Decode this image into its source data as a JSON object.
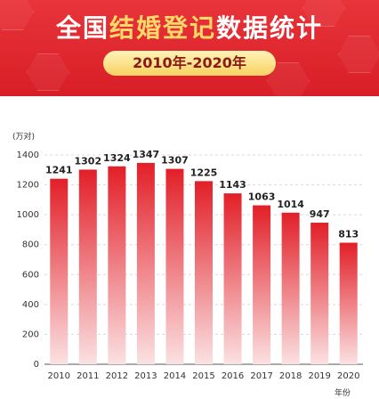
{
  "header": {
    "title_part1": "全国",
    "title_highlight": "结婚登记",
    "title_part2": "数据统计",
    "period": "2010年-2020年"
  },
  "colors": {
    "banner": "#d81e26",
    "bar_top": "#e21f28",
    "bar_bottom": "#fbe1e2",
    "value_label": "#222222"
  },
  "chart_data": {
    "type": "bar",
    "categories": [
      "2010",
      "2011",
      "2012",
      "2013",
      "2014",
      "2015",
      "2016",
      "2017",
      "2018",
      "2019",
      "2020"
    ],
    "values": [
      1241,
      1302,
      1324,
      1347,
      1307,
      1225,
      1143,
      1063,
      1014,
      947,
      813
    ],
    "xlabel": "年份",
    "ylabel": "(万对)",
    "ylim": [
      0,
      1400
    ],
    "yticks": [
      0,
      200,
      400,
      600,
      800,
      1000,
      1200,
      1400
    ],
    "grid": true
  }
}
